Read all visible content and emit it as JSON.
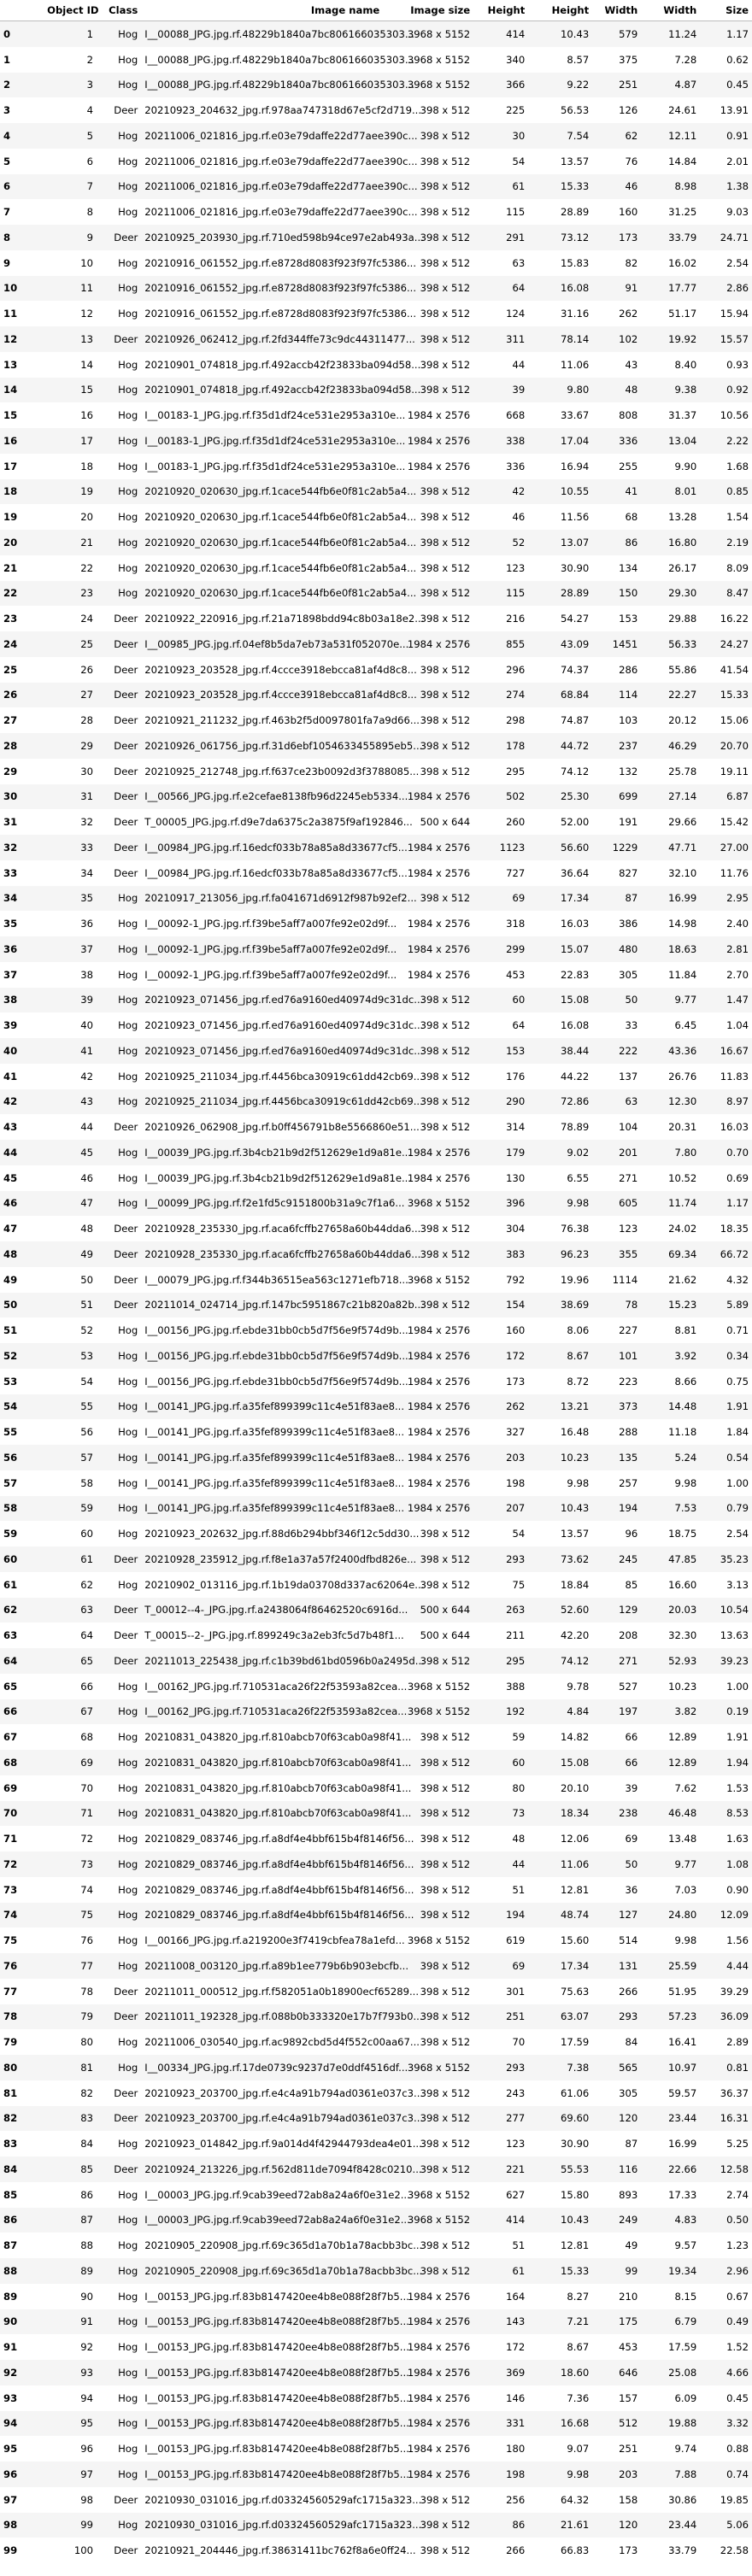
{
  "columns": [
    "",
    "Object ID",
    "Class",
    "Image name",
    "Image size",
    "Height",
    "Height",
    "Width",
    "Width",
    "Size"
  ],
  "rows": [
    [
      "0",
      "1",
      "Hog",
      "I__00088_JPG.jpg.rf.48229b1840a7bc806166035303...",
      "3968 x 5152",
      "414",
      "10.43",
      "579",
      "11.24",
      "1.17"
    ],
    [
      "1",
      "2",
      "Hog",
      "I__00088_JPG.jpg.rf.48229b1840a7bc806166035303...",
      "3968 x 5152",
      "340",
      "8.57",
      "375",
      "7.28",
      "0.62"
    ],
    [
      "2",
      "3",
      "Hog",
      "I__00088_JPG.jpg.rf.48229b1840a7bc806166035303...",
      "3968 x 5152",
      "366",
      "9.22",
      "251",
      "4.87",
      "0.45"
    ],
    [
      "3",
      "4",
      "Deer",
      "20210923_204632_jpg.rf.978aa747318d67e5cf2d719...",
      "398 x 512",
      "225",
      "56.53",
      "126",
      "24.61",
      "13.91"
    ],
    [
      "4",
      "5",
      "Hog",
      "20211006_021816_jpg.rf.e03e79daffe22d77aee390c...",
      "398 x 512",
      "30",
      "7.54",
      "62",
      "12.11",
      "0.91"
    ],
    [
      "5",
      "6",
      "Hog",
      "20211006_021816_jpg.rf.e03e79daffe22d77aee390c...",
      "398 x 512",
      "54",
      "13.57",
      "76",
      "14.84",
      "2.01"
    ],
    [
      "6",
      "7",
      "Hog",
      "20211006_021816_jpg.rf.e03e79daffe22d77aee390c...",
      "398 x 512",
      "61",
      "15.33",
      "46",
      "8.98",
      "1.38"
    ],
    [
      "7",
      "8",
      "Hog",
      "20211006_021816_jpg.rf.e03e79daffe22d77aee390c...",
      "398 x 512",
      "115",
      "28.89",
      "160",
      "31.25",
      "9.03"
    ],
    [
      "8",
      "9",
      "Deer",
      "20210925_203930_jpg.rf.710ed598b94ce97e2ab493a...",
      "398 x 512",
      "291",
      "73.12",
      "173",
      "33.79",
      "24.71"
    ],
    [
      "9",
      "10",
      "Hog",
      "20210916_061552_jpg.rf.e8728d8083f923f97fc5386...",
      "398 x 512",
      "63",
      "15.83",
      "82",
      "16.02",
      "2.54"
    ],
    [
      "10",
      "11",
      "Hog",
      "20210916_061552_jpg.rf.e8728d8083f923f97fc5386...",
      "398 x 512",
      "64",
      "16.08",
      "91",
      "17.77",
      "2.86"
    ],
    [
      "11",
      "12",
      "Hog",
      "20210916_061552_jpg.rf.e8728d8083f923f97fc5386...",
      "398 x 512",
      "124",
      "31.16",
      "262",
      "51.17",
      "15.94"
    ],
    [
      "12",
      "13",
      "Deer",
      "20210926_062412_jpg.rf.2fd344ffe73c9dc44311477...",
      "398 x 512",
      "311",
      "78.14",
      "102",
      "19.92",
      "15.57"
    ],
    [
      "13",
      "14",
      "Hog",
      "20210901_074818_jpg.rf.492accb42f23833ba094d58...",
      "398 x 512",
      "44",
      "11.06",
      "43",
      "8.40",
      "0.93"
    ],
    [
      "14",
      "15",
      "Hog",
      "20210901_074818_jpg.rf.492accb42f23833ba094d58...",
      "398 x 512",
      "39",
      "9.80",
      "48",
      "9.38",
      "0.92"
    ],
    [
      "15",
      "16",
      "Hog",
      "I__00183-1_JPG.jpg.rf.f35d1df24ce531e2953a310e...",
      "1984 x 2576",
      "668",
      "33.67",
      "808",
      "31.37",
      "10.56"
    ],
    [
      "16",
      "17",
      "Hog",
      "I__00183-1_JPG.jpg.rf.f35d1df24ce531e2953a310e...",
      "1984 x 2576",
      "338",
      "17.04",
      "336",
      "13.04",
      "2.22"
    ],
    [
      "17",
      "18",
      "Hog",
      "I__00183-1_JPG.jpg.rf.f35d1df24ce531e2953a310e...",
      "1984 x 2576",
      "336",
      "16.94",
      "255",
      "9.90",
      "1.68"
    ],
    [
      "18",
      "19",
      "Hog",
      "20210920_020630_jpg.rf.1cace544fb6e0f81c2ab5a4...",
      "398 x 512",
      "42",
      "10.55",
      "41",
      "8.01",
      "0.85"
    ],
    [
      "19",
      "20",
      "Hog",
      "20210920_020630_jpg.rf.1cace544fb6e0f81c2ab5a4...",
      "398 x 512",
      "46",
      "11.56",
      "68",
      "13.28",
      "1.54"
    ],
    [
      "20",
      "21",
      "Hog",
      "20210920_020630_jpg.rf.1cace544fb6e0f81c2ab5a4...",
      "398 x 512",
      "52",
      "13.07",
      "86",
      "16.80",
      "2.19"
    ],
    [
      "21",
      "22",
      "Hog",
      "20210920_020630_jpg.rf.1cace544fb6e0f81c2ab5a4...",
      "398 x 512",
      "123",
      "30.90",
      "134",
      "26.17",
      "8.09"
    ],
    [
      "22",
      "23",
      "Hog",
      "20210920_020630_jpg.rf.1cace544fb6e0f81c2ab5a4...",
      "398 x 512",
      "115",
      "28.89",
      "150",
      "29.30",
      "8.47"
    ],
    [
      "23",
      "24",
      "Deer",
      "20210922_220916_jpg.rf.21a71898bdd94c8b03a18e2...",
      "398 x 512",
      "216",
      "54.27",
      "153",
      "29.88",
      "16.22"
    ],
    [
      "24",
      "25",
      "Deer",
      "I__00985_JPG.jpg.rf.04ef8b5da7eb73a531f052070e...",
      "1984 x 2576",
      "855",
      "43.09",
      "1451",
      "56.33",
      "24.27"
    ],
    [
      "25",
      "26",
      "Deer",
      "20210923_203528_jpg.rf.4ccce3918ebcca81af4d8c8...",
      "398 x 512",
      "296",
      "74.37",
      "286",
      "55.86",
      "41.54"
    ],
    [
      "26",
      "27",
      "Deer",
      "20210923_203528_jpg.rf.4ccce3918ebcca81af4d8c8...",
      "398 x 512",
      "274",
      "68.84",
      "114",
      "22.27",
      "15.33"
    ],
    [
      "27",
      "28",
      "Deer",
      "20210921_211232_jpg.rf.463b2f5d0097801fa7a9d66...",
      "398 x 512",
      "298",
      "74.87",
      "103",
      "20.12",
      "15.06"
    ],
    [
      "28",
      "29",
      "Deer",
      "20210926_061756_jpg.rf.31d6ebf1054633455895eb5...",
      "398 x 512",
      "178",
      "44.72",
      "237",
      "46.29",
      "20.70"
    ],
    [
      "29",
      "30",
      "Deer",
      "20210925_212748_jpg.rf.f637ce23b0092d3f3788085...",
      "398 x 512",
      "295",
      "74.12",
      "132",
      "25.78",
      "19.11"
    ],
    [
      "30",
      "31",
      "Deer",
      "I__00566_JPG.jpg.rf.e2cefae8138fb96d2245eb5334...",
      "1984 x 2576",
      "502",
      "25.30",
      "699",
      "27.14",
      "6.87"
    ],
    [
      "31",
      "32",
      "Deer",
      "T_00005_JPG.jpg.rf.d9e7da6375c2a3875f9af192846...",
      "500 x 644",
      "260",
      "52.00",
      "191",
      "29.66",
      "15.42"
    ],
    [
      "32",
      "33",
      "Deer",
      "I__00984_JPG.jpg.rf.16edcf033b78a85a8d33677cf5...",
      "1984 x 2576",
      "1123",
      "56.60",
      "1229",
      "47.71",
      "27.00"
    ],
    [
      "33",
      "34",
      "Deer",
      "I__00984_JPG.jpg.rf.16edcf033b78a85a8d33677cf5...",
      "1984 x 2576",
      "727",
      "36.64",
      "827",
      "32.10",
      "11.76"
    ],
    [
      "34",
      "35",
      "Hog",
      "20210917_213056_jpg.rf.fa041671d6912f987b92ef2...",
      "398 x 512",
      "69",
      "17.34",
      "87",
      "16.99",
      "2.95"
    ],
    [
      "35",
      "36",
      "Hog",
      "I__00092-1_JPG.jpg.rf.f39be5aff7a007fe92e02d9f...",
      "1984 x 2576",
      "318",
      "16.03",
      "386",
      "14.98",
      "2.40"
    ],
    [
      "36",
      "37",
      "Hog",
      "I__00092-1_JPG.jpg.rf.f39be5aff7a007fe92e02d9f...",
      "1984 x 2576",
      "299",
      "15.07",
      "480",
      "18.63",
      "2.81"
    ],
    [
      "37",
      "38",
      "Hog",
      "I__00092-1_JPG.jpg.rf.f39be5aff7a007fe92e02d9f...",
      "1984 x 2576",
      "453",
      "22.83",
      "305",
      "11.84",
      "2.70"
    ],
    [
      "38",
      "39",
      "Hog",
      "20210923_071456_jpg.rf.ed76a9160ed40974d9c31dc...",
      "398 x 512",
      "60",
      "15.08",
      "50",
      "9.77",
      "1.47"
    ],
    [
      "39",
      "40",
      "Hog",
      "20210923_071456_jpg.rf.ed76a9160ed40974d9c31dc...",
      "398 x 512",
      "64",
      "16.08",
      "33",
      "6.45",
      "1.04"
    ],
    [
      "40",
      "41",
      "Hog",
      "20210923_071456_jpg.rf.ed76a9160ed40974d9c31dc...",
      "398 x 512",
      "153",
      "38.44",
      "222",
      "43.36",
      "16.67"
    ],
    [
      "41",
      "42",
      "Hog",
      "20210925_211034_jpg.rf.4456bca30919c61dd42cb69...",
      "398 x 512",
      "176",
      "44.22",
      "137",
      "26.76",
      "11.83"
    ],
    [
      "42",
      "43",
      "Hog",
      "20210925_211034_jpg.rf.4456bca30919c61dd42cb69...",
      "398 x 512",
      "290",
      "72.86",
      "63",
      "12.30",
      "8.97"
    ],
    [
      "43",
      "44",
      "Deer",
      "20210926_062908_jpg.rf.b0ff456791b8e5566860e51...",
      "398 x 512",
      "314",
      "78.89",
      "104",
      "20.31",
      "16.03"
    ],
    [
      "44",
      "45",
      "Hog",
      "I__00039_JPG.jpg.rf.3b4cb21b9d2f512629e1d9a81e...",
      "1984 x 2576",
      "179",
      "9.02",
      "201",
      "7.80",
      "0.70"
    ],
    [
      "45",
      "46",
      "Hog",
      "I__00039_JPG.jpg.rf.3b4cb21b9d2f512629e1d9a81e...",
      "1984 x 2576",
      "130",
      "6.55",
      "271",
      "10.52",
      "0.69"
    ],
    [
      "46",
      "47",
      "Hog",
      "I__00099_JPG.jpg.rf.f2e1fd5c9151800b31a9c7f1a6...",
      "3968 x 5152",
      "396",
      "9.98",
      "605",
      "11.74",
      "1.17"
    ],
    [
      "47",
      "48",
      "Deer",
      "20210928_235330_jpg.rf.aca6fcffb27658a60b44dda6...",
      "398 x 512",
      "304",
      "76.38",
      "123",
      "24.02",
      "18.35"
    ],
    [
      "48",
      "49",
      "Deer",
      "20210928_235330_jpg.rf.aca6fcffb27658a60b44dda6...",
      "398 x 512",
      "383",
      "96.23",
      "355",
      "69.34",
      "66.72"
    ],
    [
      "49",
      "50",
      "Deer",
      "I__00079_JPG.jpg.rf.f344b36515ea563c1271efb718...",
      "3968 x 5152",
      "792",
      "19.96",
      "1114",
      "21.62",
      "4.32"
    ],
    [
      "50",
      "51",
      "Deer",
      "20211014_024714_jpg.rf.147bc5951867c21b820a82b...",
      "398 x 512",
      "154",
      "38.69",
      "78",
      "15.23",
      "5.89"
    ],
    [
      "51",
      "52",
      "Hog",
      "I__00156_JPG.jpg.rf.ebde31bb0cb5d7f56e9f574d9b...",
      "1984 x 2576",
      "160",
      "8.06",
      "227",
      "8.81",
      "0.71"
    ],
    [
      "52",
      "53",
      "Hog",
      "I__00156_JPG.jpg.rf.ebde31bb0cb5d7f56e9f574d9b...",
      "1984 x 2576",
      "172",
      "8.67",
      "101",
      "3.92",
      "0.34"
    ],
    [
      "53",
      "54",
      "Hog",
      "I__00156_JPG.jpg.rf.ebde31bb0cb5d7f56e9f574d9b...",
      "1984 x 2576",
      "173",
      "8.72",
      "223",
      "8.66",
      "0.75"
    ],
    [
      "54",
      "55",
      "Hog",
      "I__00141_JPG.jpg.rf.a35fef899399c11c4e51f83ae8...",
      "1984 x 2576",
      "262",
      "13.21",
      "373",
      "14.48",
      "1.91"
    ],
    [
      "55",
      "56",
      "Hog",
      "I__00141_JPG.jpg.rf.a35fef899399c11c4e51f83ae8...",
      "1984 x 2576",
      "327",
      "16.48",
      "288",
      "11.18",
      "1.84"
    ],
    [
      "56",
      "57",
      "Hog",
      "I__00141_JPG.jpg.rf.a35fef899399c11c4e51f83ae8...",
      "1984 x 2576",
      "203",
      "10.23",
      "135",
      "5.24",
      "0.54"
    ],
    [
      "57",
      "58",
      "Hog",
      "I__00141_JPG.jpg.rf.a35fef899399c11c4e51f83ae8...",
      "1984 x 2576",
      "198",
      "9.98",
      "257",
      "9.98",
      "1.00"
    ],
    [
      "58",
      "59",
      "Hog",
      "I__00141_JPG.jpg.rf.a35fef899399c11c4e51f83ae8...",
      "1984 x 2576",
      "207",
      "10.43",
      "194",
      "7.53",
      "0.79"
    ],
    [
      "59",
      "60",
      "Hog",
      "20210923_202632_jpg.rf.88d6b294bbf346f12c5dd30...",
      "398 x 512",
      "54",
      "13.57",
      "96",
      "18.75",
      "2.54"
    ],
    [
      "60",
      "61",
      "Deer",
      "20210928_235912_jpg.rf.f8e1a37a57f2400dfbd826e...",
      "398 x 512",
      "293",
      "73.62",
      "245",
      "47.85",
      "35.23"
    ],
    [
      "61",
      "62",
      "Hog",
      "20210902_013116_jpg.rf.1b19da03708d337ac62064e...",
      "398 x 512",
      "75",
      "18.84",
      "85",
      "16.60",
      "3.13"
    ],
    [
      "62",
      "63",
      "Deer",
      "T_00012--4-_JPG.jpg.rf.a2438064f86462520c6916d...",
      "500 x 644",
      "263",
      "52.60",
      "129",
      "20.03",
      "10.54"
    ],
    [
      "63",
      "64",
      "Deer",
      "T_00015--2-_JPG.jpg.rf.899249c3a2eb3fc5d7b48f1...",
      "500 x 644",
      "211",
      "42.20",
      "208",
      "32.30",
      "13.63"
    ],
    [
      "64",
      "65",
      "Deer",
      "20211013_225438_jpg.rf.c1b39bd61bd0596b0a2495d...",
      "398 x 512",
      "295",
      "74.12",
      "271",
      "52.93",
      "39.23"
    ],
    [
      "65",
      "66",
      "Hog",
      "I__00162_JPG.jpg.rf.710531aca26f22f53593a82cea...",
      "3968 x 5152",
      "388",
      "9.78",
      "527",
      "10.23",
      "1.00"
    ],
    [
      "66",
      "67",
      "Hog",
      "I__00162_JPG.jpg.rf.710531aca26f22f53593a82cea...",
      "3968 x 5152",
      "192",
      "4.84",
      "197",
      "3.82",
      "0.19"
    ],
    [
      "67",
      "68",
      "Hog",
      "20210831_043820_jpg.rf.810abcb70f63cab0a98f41...",
      "398 x 512",
      "59",
      "14.82",
      "66",
      "12.89",
      "1.91"
    ],
    [
      "68",
      "69",
      "Hog",
      "20210831_043820_jpg.rf.810abcb70f63cab0a98f41...",
      "398 x 512",
      "60",
      "15.08",
      "66",
      "12.89",
      "1.94"
    ],
    [
      "69",
      "70",
      "Hog",
      "20210831_043820_jpg.rf.810abcb70f63cab0a98f41...",
      "398 x 512",
      "80",
      "20.10",
      "39",
      "7.62",
      "1.53"
    ],
    [
      "70",
      "71",
      "Hog",
      "20210831_043820_jpg.rf.810abcb70f63cab0a98f41...",
      "398 x 512",
      "73",
      "18.34",
      "238",
      "46.48",
      "8.53"
    ],
    [
      "71",
      "72",
      "Hog",
      "20210829_083746_jpg.rf.a8df4e4bbf615b4f8146f56...",
      "398 x 512",
      "48",
      "12.06",
      "69",
      "13.48",
      "1.63"
    ],
    [
      "72",
      "73",
      "Hog",
      "20210829_083746_jpg.rf.a8df4e4bbf615b4f8146f56...",
      "398 x 512",
      "44",
      "11.06",
      "50",
      "9.77",
      "1.08"
    ],
    [
      "73",
      "74",
      "Hog",
      "20210829_083746_jpg.rf.a8df4e4bbf615b4f8146f56...",
      "398 x 512",
      "51",
      "12.81",
      "36",
      "7.03",
      "0.90"
    ],
    [
      "74",
      "75",
      "Hog",
      "20210829_083746_jpg.rf.a8df4e4bbf615b4f8146f56...",
      "398 x 512",
      "194",
      "48.74",
      "127",
      "24.80",
      "12.09"
    ],
    [
      "75",
      "76",
      "Hog",
      "I__00166_JPG.jpg.rf.a219200e3f7419cbfea78a1efd...",
      "3968 x 5152",
      "619",
      "15.60",
      "514",
      "9.98",
      "1.56"
    ],
    [
      "76",
      "77",
      "Hog",
      "20211008_003120_jpg.rf.a89b1ee779b6b903ebcfb...",
      "398 x 512",
      "69",
      "17.34",
      "131",
      "25.59",
      "4.44"
    ],
    [
      "77",
      "78",
      "Deer",
      "20211011_000512_jpg.rf.f582051a0b18900ecf65289...",
      "398 x 512",
      "301",
      "75.63",
      "266",
      "51.95",
      "39.29"
    ],
    [
      "78",
      "79",
      "Deer",
      "20211011_192328_jpg.rf.088b0b333320e17b7f793b0...",
      "398 x 512",
      "251",
      "63.07",
      "293",
      "57.23",
      "36.09"
    ],
    [
      "79",
      "80",
      "Hog",
      "20211006_030540_jpg.rf.ac9892cbd5d4f552c00aa67...",
      "398 x 512",
      "70",
      "17.59",
      "84",
      "16.41",
      "2.89"
    ],
    [
      "80",
      "81",
      "Hog",
      "I__00334_JPG.jpg.rf.17de0739c9237d7e0ddf4516df...",
      "3968 x 5152",
      "293",
      "7.38",
      "565",
      "10.97",
      "0.81"
    ],
    [
      "81",
      "82",
      "Deer",
      "20210923_203700_jpg.rf.e4c4a91b794ad0361e037c3...",
      "398 x 512",
      "243",
      "61.06",
      "305",
      "59.57",
      "36.37"
    ],
    [
      "82",
      "83",
      "Deer",
      "20210923_203700_jpg.rf.e4c4a91b794ad0361e037c3...",
      "398 x 512",
      "277",
      "69.60",
      "120",
      "23.44",
      "16.31"
    ],
    [
      "83",
      "84",
      "Hog",
      "20210923_014842_jpg.rf.9a014d4f42944793dea4e01...",
      "398 x 512",
      "123",
      "30.90",
      "87",
      "16.99",
      "5.25"
    ],
    [
      "84",
      "85",
      "Deer",
      "20210924_213226_jpg.rf.562d811de7094f8428c0210...",
      "398 x 512",
      "221",
      "55.53",
      "116",
      "22.66",
      "12.58"
    ],
    [
      "85",
      "86",
      "Hog",
      "I__00003_JPG.jpg.rf.9cab39eed72ab8a24a6f0e31e2...",
      "3968 x 5152",
      "627",
      "15.80",
      "893",
      "17.33",
      "2.74"
    ],
    [
      "86",
      "87",
      "Hog",
      "I__00003_JPG.jpg.rf.9cab39eed72ab8a24a6f0e31e2...",
      "3968 x 5152",
      "414",
      "10.43",
      "249",
      "4.83",
      "0.50"
    ],
    [
      "87",
      "88",
      "Hog",
      "20210905_220908_jpg.rf.69c365d1a70b1a78acbb3bc...",
      "398 x 512",
      "51",
      "12.81",
      "49",
      "9.57",
      "1.23"
    ],
    [
      "88",
      "89",
      "Hog",
      "20210905_220908_jpg.rf.69c365d1a70b1a78acbb3bc...",
      "398 x 512",
      "61",
      "15.33",
      "99",
      "19.34",
      "2.96"
    ],
    [
      "89",
      "90",
      "Hog",
      "I__00153_JPG.jpg.rf.83b8147420ee4b8e088f28f7b5...",
      "1984 x 2576",
      "164",
      "8.27",
      "210",
      "8.15",
      "0.67"
    ],
    [
      "90",
      "91",
      "Hog",
      "I__00153_JPG.jpg.rf.83b8147420ee4b8e088f28f7b5...",
      "1984 x 2576",
      "143",
      "7.21",
      "175",
      "6.79",
      "0.49"
    ],
    [
      "91",
      "92",
      "Hog",
      "I__00153_JPG.jpg.rf.83b8147420ee4b8e088f28f7b5...",
      "1984 x 2576",
      "172",
      "8.67",
      "453",
      "17.59",
      "1.52"
    ],
    [
      "92",
      "93",
      "Hog",
      "I__00153_JPG.jpg.rf.83b8147420ee4b8e088f28f7b5...",
      "1984 x 2576",
      "369",
      "18.60",
      "646",
      "25.08",
      "4.66"
    ],
    [
      "93",
      "94",
      "Hog",
      "I__00153_JPG.jpg.rf.83b8147420ee4b8e088f28f7b5...",
      "1984 x 2576",
      "146",
      "7.36",
      "157",
      "6.09",
      "0.45"
    ],
    [
      "94",
      "95",
      "Hog",
      "I__00153_JPG.jpg.rf.83b8147420ee4b8e088f28f7b5...",
      "1984 x 2576",
      "331",
      "16.68",
      "512",
      "19.88",
      "3.32"
    ],
    [
      "95",
      "96",
      "Hog",
      "I__00153_JPG.jpg.rf.83b8147420ee4b8e088f28f7b5...",
      "1984 x 2576",
      "180",
      "9.07",
      "251",
      "9.74",
      "0.88"
    ],
    [
      "96",
      "97",
      "Hog",
      "I__00153_JPG.jpg.rf.83b8147420ee4b8e088f28f7b5...",
      "1984 x 2576",
      "198",
      "9.98",
      "203",
      "7.88",
      "0.74"
    ],
    [
      "97",
      "98",
      "Deer",
      "20210930_031016_jpg.rf.d03324560529afc1715a323...",
      "398 x 512",
      "256",
      "64.32",
      "158",
      "30.86",
      "19.85"
    ],
    [
      "98",
      "99",
      "Hog",
      "20210930_031016_jpg.rf.d03324560529afc1715a323...",
      "398 x 512",
      "86",
      "21.61",
      "120",
      "23.44",
      "5.06"
    ],
    [
      "99",
      "100",
      "Deer",
      "20210921_204446_jpg.rf.38631411bc762f8a6e0ff24...",
      "398 x 512",
      "266",
      "66.83",
      "173",
      "33.79",
      "22.58"
    ]
  ]
}
